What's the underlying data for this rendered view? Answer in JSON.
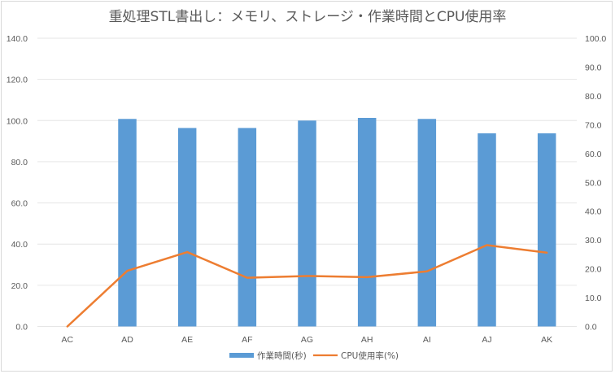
{
  "chart_data": {
    "type": "bar+line",
    "title": "重処理STL書出し：メモリ、ストレージ・作業時間とCPU使用率",
    "categories": [
      "AC",
      "AD",
      "AE",
      "AF",
      "AG",
      "AH",
      "AI",
      "AJ",
      "AK"
    ],
    "series": [
      {
        "name": "作業時間(秒)",
        "type": "bar",
        "axis": "left",
        "color": "#5B9BD5",
        "values": [
          null,
          100.8,
          96.4,
          96.4,
          100.0,
          101.3,
          100.8,
          93.8,
          93.8
        ]
      },
      {
        "name": "CPU使用率(%)",
        "type": "line",
        "axis": "right",
        "color": "#ED7D31",
        "values": [
          0.0,
          19.3,
          25.8,
          16.9,
          17.5,
          17.1,
          19.1,
          28.2,
          25.6
        ]
      }
    ],
    "left_axis": {
      "ylim": [
        0,
        140
      ],
      "step": 20,
      "tick_labels": [
        "0.0",
        "20.0",
        "40.0",
        "60.0",
        "80.0",
        "100.0",
        "120.0",
        "140.0"
      ]
    },
    "right_axis": {
      "ylim": [
        0,
        100
      ],
      "step": 10,
      "tick_labels": [
        "0.0",
        "10.0",
        "20.0",
        "30.0",
        "40.0",
        "50.0",
        "60.0",
        "70.0",
        "80.0",
        "90.0",
        "100.0"
      ]
    },
    "grid": true,
    "legend": "bottom"
  }
}
